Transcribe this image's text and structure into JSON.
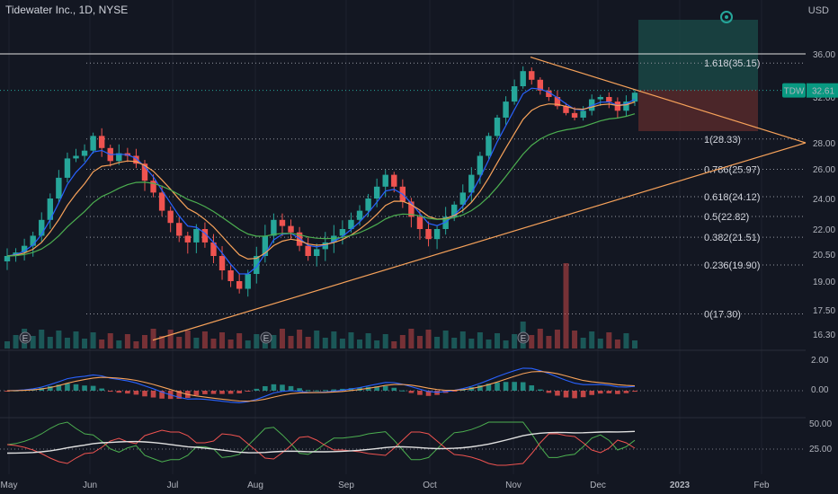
{
  "header": {
    "title": "Tidewater Inc., 1D, NYSE",
    "currency": "USD"
  },
  "price_tag": {
    "symbol": "TDW",
    "value": "32.61"
  },
  "colors": {
    "bg": "#131722",
    "up": "#26a69a",
    "down": "#ef5350",
    "orange": "#f7a25a",
    "blue": "#2962ff",
    "green": "#4caf50",
    "white": "#e0e0e0",
    "tag": "#089981"
  },
  "chart_data": [
    {
      "type": "candlestick",
      "title": "Tidewater Inc., 1D, NYSE",
      "y_ticks": [
        36.0,
        32.0,
        28.0,
        26.0,
        24.0,
        22.0,
        20.5,
        19.0,
        17.5,
        16.3
      ],
      "y_tick_labels": [
        "36.00",
        "32.00",
        "28.00",
        "26.00",
        "24.00",
        "22.00",
        "20.50",
        "19.00",
        "17.50",
        "16.30"
      ],
      "x_tick_labels": [
        "May",
        "Jun",
        "Jul",
        "Aug",
        "Sep",
        "Oct",
        "Nov",
        "Dec",
        "2023",
        "Feb"
      ],
      "last_price": 32.61,
      "fib_levels": [
        {
          "label": "1.618(35.15)",
          "value": 35.15
        },
        {
          "label": "1(28.33)",
          "value": 28.33
        },
        {
          "label": "0.786(25.97)",
          "value": 25.97
        },
        {
          "label": "0.618(24.12)",
          "value": 24.12
        },
        {
          "label": "0.5(22.82)",
          "value": 22.82
        },
        {
          "label": "0.382(21.51)",
          "value": 21.51
        },
        {
          "label": "0.236(19.90)",
          "value": 19.9
        },
        {
          "label": "0(17.30)",
          "value": 17.3
        }
      ],
      "horizontal_line": 36.0,
      "earnings_markers": [
        "E",
        "E",
        "E"
      ],
      "approx_closes": [
        20.4,
        20.6,
        21.0,
        21.6,
        22.6,
        24.0,
        25.4,
        26.8,
        27.0,
        27.4,
        28.6,
        27.6,
        26.6,
        27.2,
        27.0,
        26.4,
        25.2,
        24.4,
        23.2,
        22.4,
        21.6,
        21.2,
        22.0,
        21.2,
        20.4,
        19.6,
        19.0,
        18.6,
        19.4,
        20.4,
        21.6,
        22.6,
        22.2,
        21.8,
        21.0,
        20.4,
        20.8,
        21.2,
        21.6,
        22.0,
        22.6,
        23.2,
        24.0,
        24.8,
        25.6,
        24.8,
        23.8,
        22.8,
        22.0,
        21.4,
        22.0,
        22.8,
        23.6,
        24.4,
        25.6,
        27.0,
        28.6,
        30.2,
        31.6,
        33.0,
        34.4,
        33.6,
        32.6,
        32.0,
        31.2,
        30.6,
        30.2,
        30.8,
        31.8,
        32.0,
        31.6,
        30.8,
        31.6,
        32.4
      ]
    },
    {
      "type": "line",
      "name": "MACD",
      "y_tick_labels": [
        "2.00",
        "0.00"
      ]
    },
    {
      "type": "line",
      "name": "Oscillator",
      "y_tick_labels": [
        "50.00",
        "25.00"
      ]
    }
  ]
}
